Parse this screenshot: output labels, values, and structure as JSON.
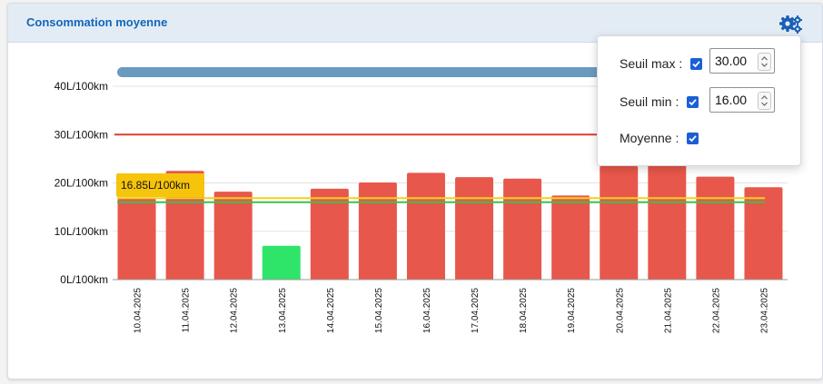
{
  "card": {
    "title": "Consommation moyenne",
    "settings_icon": "gears-icon"
  },
  "settings": {
    "max": {
      "label": "Seuil max :",
      "checked": true,
      "value": "30.00"
    },
    "min": {
      "label": "Seuil min :",
      "checked": true,
      "value": "16.00"
    },
    "avg": {
      "label": "Moyenne :",
      "checked": true
    }
  },
  "chart_data": {
    "type": "bar",
    "categories": [
      "10.04.2025",
      "11.04.2025",
      "12.04.2025",
      "13.04.2025",
      "14.04.2025",
      "15.04.2025",
      "16.04.2025",
      "17.04.2025",
      "18.04.2025",
      "19.04.2025",
      "20.04.2025",
      "21.04.2025",
      "22.04.2025",
      "23.04.2025"
    ],
    "values": [
      16.8,
      22.5,
      18.2,
      7.0,
      18.8,
      20.1,
      22.1,
      21.2,
      20.9,
      17.4,
      23.5,
      24.0,
      21.3,
      19.1
    ],
    "ylim": [
      0,
      40
    ],
    "yticks": [
      0,
      10,
      20,
      30,
      40
    ],
    "ytick_labels": [
      "0L/100km",
      "10L/100km",
      "20L/100km",
      "30L/100km",
      "40L/100km"
    ],
    "thresholds": {
      "max": 30,
      "min": 16,
      "average": 16.85
    },
    "average_label": "16.85L/100km",
    "colors": {
      "above_min": "#e8574b",
      "below_min": "#2ee56a",
      "max_line": "#e03a2f",
      "min_line": "#3cc24a",
      "avg_line": "#f0d21b",
      "scrollbar": "#6a9bbf"
    },
    "grid": true
  }
}
